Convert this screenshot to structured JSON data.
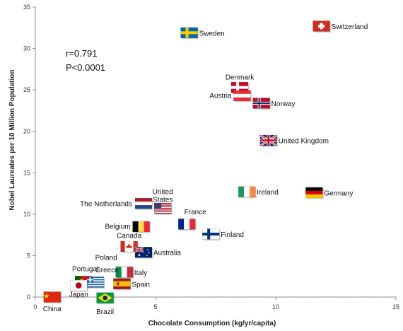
{
  "chart_data": {
    "type": "scatter",
    "title": "",
    "xlabel": "Chocolate Consumption (kg/yr/capita)",
    "ylabel": "Nobel Laureates per 10 Million Population",
    "xlim": [
      0,
      15
    ],
    "ylim": [
      0,
      35
    ],
    "x_ticks": [
      "0",
      "5",
      "10",
      "15"
    ],
    "y_ticks": [
      "0",
      "5",
      "10",
      "15",
      "20",
      "25",
      "30",
      "35"
    ],
    "annotation": {
      "r": "r=0.791",
      "p": "P<0.0001"
    },
    "zero_line": "dashed",
    "grid": false,
    "marker": "national-flag",
    "points": [
      {
        "country": "Switzerland",
        "x": 11.9,
        "y": 32.7
      },
      {
        "country": "Sweden",
        "x": 6.4,
        "y": 31.9
      },
      {
        "country": "Denmark",
        "x": 8.5,
        "y": 25.3
      },
      {
        "country": "Austria",
        "x": 8.6,
        "y": 24.3
      },
      {
        "country": "Norway",
        "x": 9.4,
        "y": 23.4
      },
      {
        "country": "United Kingdom",
        "x": 9.7,
        "y": 18.9
      },
      {
        "country": "Ireland",
        "x": 8.8,
        "y": 12.7
      },
      {
        "country": "Germany",
        "x": 11.6,
        "y": 12.6
      },
      {
        "country": "United States",
        "x": 5.3,
        "y": 10.7
      },
      {
        "country": "The Netherlands",
        "x": 4.5,
        "y": 11.3
      },
      {
        "country": "France",
        "x": 6.3,
        "y": 8.8
      },
      {
        "country": "Finland",
        "x": 7.3,
        "y": 7.6
      },
      {
        "country": "Belgium",
        "x": 4.4,
        "y": 8.5
      },
      {
        "country": "Canada",
        "x": 3.9,
        "y": 6.1
      },
      {
        "country": "Australia",
        "x": 4.5,
        "y": 5.4
      },
      {
        "country": "Poland",
        "x": 3.7,
        "y": 3.1
      },
      {
        "country": "Italy",
        "x": 3.7,
        "y": 3.0
      },
      {
        "country": "Portugal",
        "x": 2.0,
        "y": 1.9
      },
      {
        "country": "Greece",
        "x": 2.5,
        "y": 1.8
      },
      {
        "country": "Spain",
        "x": 3.6,
        "y": 1.6
      },
      {
        "country": "Japan",
        "x": 1.8,
        "y": 1.4
      },
      {
        "country": "China",
        "x": 0.7,
        "y": 0.0
      },
      {
        "country": "Brazil",
        "x": 2.9,
        "y": -0.1
      }
    ]
  },
  "colors": {
    "axis": "#888888",
    "zero_line": "#999999",
    "text": "#111111"
  }
}
